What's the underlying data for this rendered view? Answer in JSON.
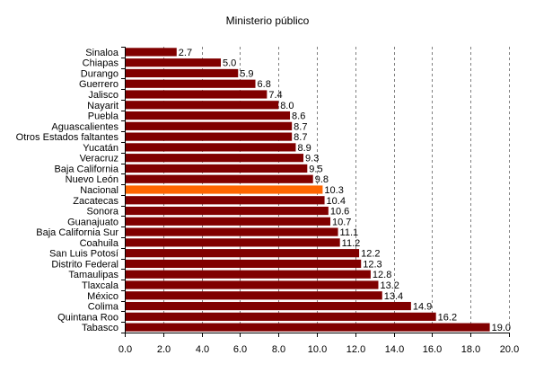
{
  "chart_data": {
    "type": "bar",
    "orientation": "horizontal",
    "title": "Ministerio público",
    "xlabel": "",
    "ylabel": "",
    "xlim": [
      0,
      20
    ],
    "x_ticks": [
      "0.0",
      "2.0",
      "4.0",
      "6.0",
      "8.0",
      "10.0",
      "12.0",
      "14.0",
      "16.0",
      "18.0",
      "20.0"
    ],
    "grid": "vertical dashed",
    "legend": "none",
    "categories": [
      "Sinaloa",
      "Chiapas",
      "Durango",
      "Guerrero",
      "Jalisco",
      "Nayarit",
      "Puebla",
      "Aguascalientes",
      "Otros Estados faltantes",
      "Yucatán",
      "Veracruz",
      "Baja California",
      "Nuevo León",
      "Nacional",
      "Zacatecas",
      "Sonora",
      "Guanajuato",
      "Baja California Sur",
      "Coahuila",
      "San Luis Potosí",
      "Distrito Federal",
      "Tamaulipas",
      "Tlaxcala",
      "México",
      "Colima",
      "Quintana Roo",
      "Tabasco"
    ],
    "values": [
      2.7,
      5.0,
      5.9,
      6.8,
      7.4,
      8.0,
      8.6,
      8.7,
      8.7,
      8.9,
      9.3,
      9.5,
      9.8,
      10.3,
      10.4,
      10.6,
      10.7,
      11.1,
      11.2,
      12.2,
      12.3,
      12.8,
      13.2,
      13.4,
      14.9,
      16.2,
      19.0
    ],
    "value_labels": [
      "2.7",
      "5.0",
      "5.9",
      "6.8",
      "7.4",
      "8.0",
      "8.6",
      "8.7",
      "8.7",
      "8.9",
      "9.3",
      "9.5",
      "9.8",
      "10.3",
      "10.4",
      "10.6",
      "10.7",
      "11.1",
      "11.2",
      "12.2",
      "12.3",
      "12.8",
      "13.2",
      "13.4",
      "14.9",
      "16.2",
      "19.0"
    ],
    "highlight_category": "Nacional",
    "colors": {
      "bar": "#800000",
      "highlight": "#ff6600",
      "grid": "#808080",
      "axis": "#000000"
    }
  }
}
